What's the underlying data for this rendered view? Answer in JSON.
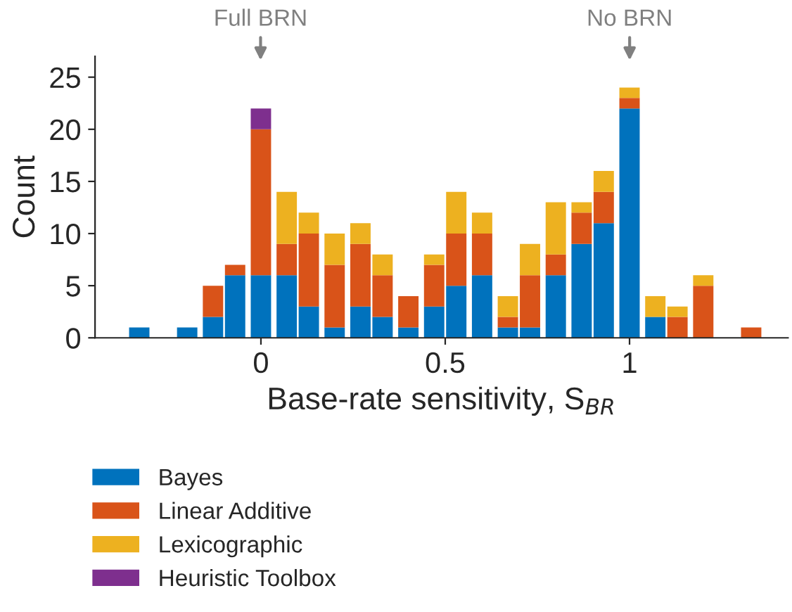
{
  "chart_data": {
    "type": "bar",
    "stacked": true,
    "xlabel": "Base-rate sensitivity, S$_{BR}$",
    "ylabel": "Count",
    "x": [
      -0.33,
      -0.27,
      -0.2,
      -0.13,
      -0.07,
      0,
      0.07,
      0.13,
      0.2,
      0.27,
      0.33,
      0.4,
      0.47,
      0.53,
      0.6,
      0.67,
      0.73,
      0.8,
      0.87,
      0.93,
      1,
      1.07,
      1.13,
      1.2,
      1.27,
      1.33
    ],
    "series": [
      {
        "name": "Bayes",
        "color": "#0072bd",
        "values": [
          1,
          null,
          1,
          2,
          6,
          6,
          6,
          3,
          1,
          3,
          2,
          1,
          3,
          5,
          6,
          1,
          1,
          6,
          9,
          11,
          22,
          2,
          null,
          null,
          null,
          null
        ]
      },
      {
        "name": "Linear Additive",
        "color": "#d95319",
        "values": [
          null,
          null,
          null,
          3,
          1,
          14,
          3,
          7,
          6,
          6,
          4,
          3,
          4,
          5,
          4,
          1,
          5,
          2,
          3,
          3,
          1,
          null,
          2,
          5,
          null,
          1
        ]
      },
      {
        "name": "Lexicographic",
        "color": "#edb120",
        "values": [
          null,
          null,
          null,
          null,
          null,
          null,
          5,
          2,
          3,
          2,
          2,
          null,
          1,
          4,
          2,
          2,
          3,
          5,
          1,
          2,
          1,
          2,
          1,
          1,
          null,
          null
        ]
      },
      {
        "name": "Heuristic Toolbox",
        "color": "#7e2f8e",
        "values": [
          null,
          null,
          null,
          null,
          null,
          2,
          null,
          null,
          null,
          null,
          null,
          null,
          null,
          null,
          null,
          null,
          null,
          null,
          null,
          null,
          null,
          null,
          null,
          null,
          null,
          null
        ]
      }
    ],
    "xlim": [
      -0.45,
      1.43
    ],
    "ylim": [
      0,
      27
    ],
    "xticks": [
      0,
      0.5,
      1
    ],
    "yticks": [
      0,
      5,
      10,
      15,
      20,
      25
    ],
    "annotations": [
      "Full BRN",
      "No BRN"
    ],
    "legend": "bottom left",
    "grid": false
  }
}
